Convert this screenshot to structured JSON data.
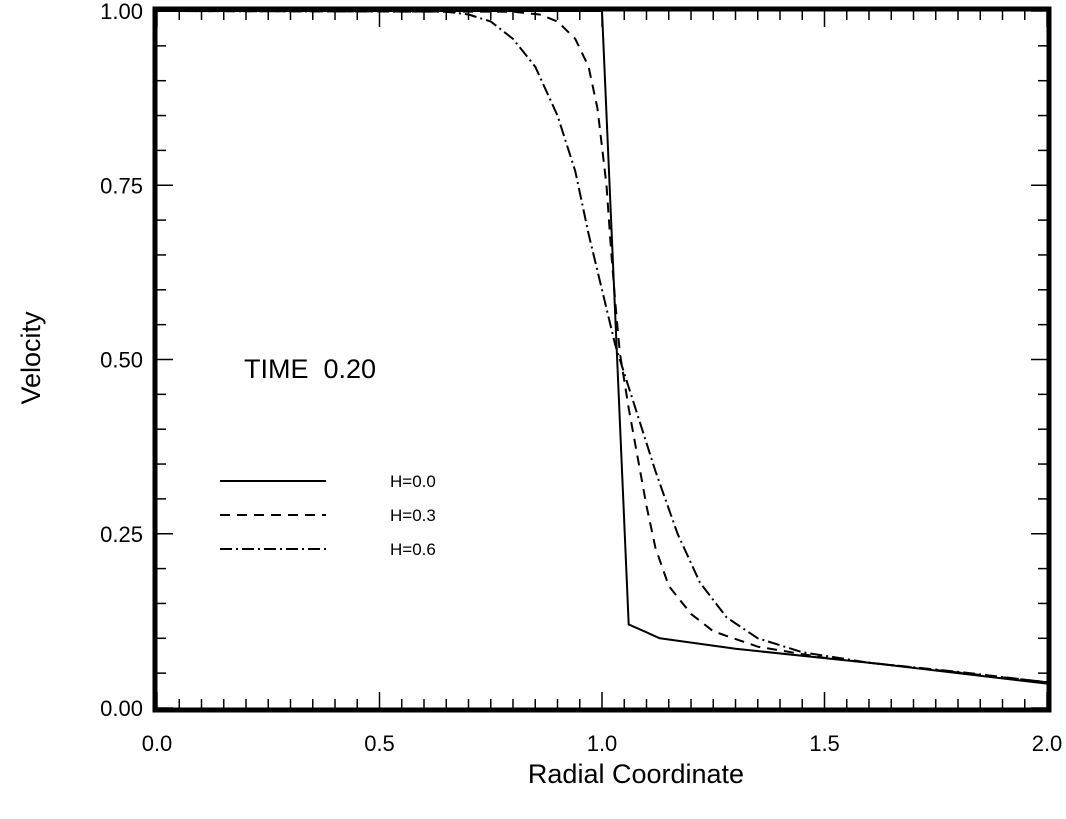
{
  "chart_data": {
    "type": "line",
    "title": "",
    "xlabel": "Radial Coordinate",
    "ylabel": "Velocity",
    "xlim": [
      0.0,
      2.0
    ],
    "ylim": [
      0.0,
      1.0
    ],
    "grid": false,
    "legend_placement": "left",
    "x_ticks": [
      "0.0",
      "0.5",
      "1.0",
      "1.5",
      "2.0"
    ],
    "y_ticks": [
      "0.00",
      "0.25",
      "0.50",
      "0.75",
      "1.00"
    ],
    "annotation": "TIME  0.20",
    "series": [
      {
        "name": "H=0.0",
        "style": "solid",
        "points": [
          [
            0.0,
            1.0
          ],
          [
            1.0,
            1.0
          ],
          [
            1.06,
            0.12
          ],
          [
            1.13,
            0.1
          ],
          [
            1.3,
            0.085
          ],
          [
            1.6,
            0.065
          ],
          [
            2.0,
            0.035
          ]
        ]
      },
      {
        "name": "H=0.3",
        "style": "dashed",
        "points": [
          [
            0.0,
            1.0
          ],
          [
            0.8,
            0.999
          ],
          [
            0.86,
            0.995
          ],
          [
            0.9,
            0.985
          ],
          [
            0.94,
            0.96
          ],
          [
            0.97,
            0.92
          ],
          [
            0.99,
            0.86
          ],
          [
            1.01,
            0.75
          ],
          [
            1.02,
            0.66
          ],
          [
            1.03,
            0.58
          ],
          [
            1.04,
            0.51
          ],
          [
            1.06,
            0.43
          ],
          [
            1.08,
            0.36
          ],
          [
            1.1,
            0.29
          ],
          [
            1.12,
            0.23
          ],
          [
            1.15,
            0.175
          ],
          [
            1.2,
            0.135
          ],
          [
            1.25,
            0.11
          ],
          [
            1.35,
            0.088
          ],
          [
            1.5,
            0.072
          ],
          [
            1.7,
            0.058
          ],
          [
            2.0,
            0.037
          ]
        ]
      },
      {
        "name": "H=0.6",
        "style": "dashdot",
        "points": [
          [
            0.0,
            1.0
          ],
          [
            0.65,
            0.999
          ],
          [
            0.7,
            0.995
          ],
          [
            0.75,
            0.985
          ],
          [
            0.8,
            0.96
          ],
          [
            0.85,
            0.92
          ],
          [
            0.9,
            0.85
          ],
          [
            0.94,
            0.77
          ],
          [
            0.97,
            0.68
          ],
          [
            1.0,
            0.6
          ],
          [
            1.03,
            0.52
          ],
          [
            1.07,
            0.44
          ],
          [
            1.12,
            0.34
          ],
          [
            1.17,
            0.25
          ],
          [
            1.22,
            0.18
          ],
          [
            1.28,
            0.13
          ],
          [
            1.35,
            0.1
          ],
          [
            1.45,
            0.08
          ],
          [
            1.6,
            0.065
          ],
          [
            1.8,
            0.052
          ],
          [
            2.0,
            0.037
          ]
        ]
      }
    ]
  }
}
